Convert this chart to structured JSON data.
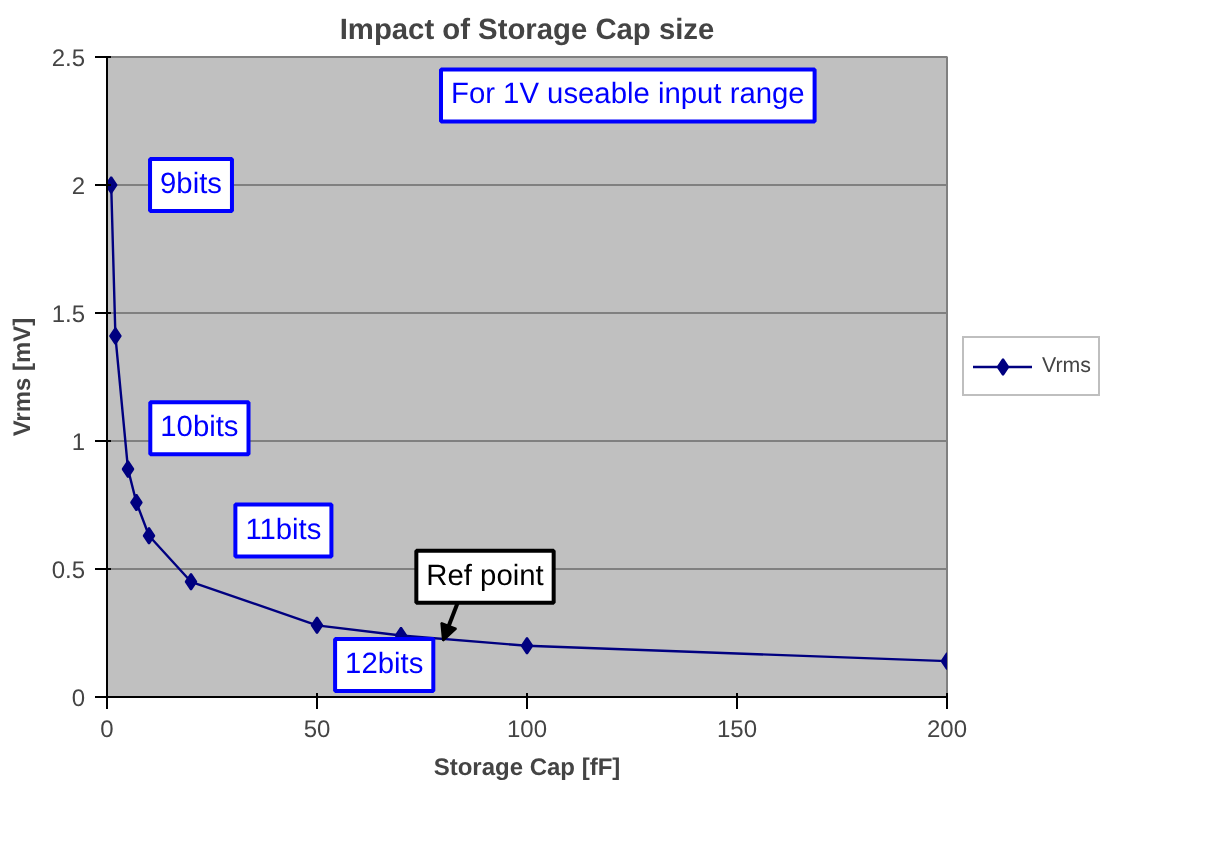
{
  "chart_data": {
    "type": "line",
    "title": "Impact of Storage Cap size",
    "xlabel": "Storage Cap [fF]",
    "ylabel": "Vrms [mV]",
    "x": [
      1,
      2,
      5,
      7,
      10,
      20,
      50,
      70,
      100,
      200
    ],
    "series": [
      {
        "name": "Vrms",
        "color": "#000080",
        "values": [
          2.0,
          1.41,
          0.89,
          0.76,
          0.63,
          0.45,
          0.28,
          0.24,
          0.2,
          0.14
        ]
      }
    ],
    "xlim": [
      0,
      200
    ],
    "xticks": [
      0,
      50,
      100,
      150,
      200
    ],
    "ylim": [
      0,
      2.5
    ],
    "yticks": [
      0,
      0.5,
      1,
      1.5,
      2,
      2.5
    ],
    "grid": "y",
    "legend": "right",
    "marker": "diamond",
    "line_style": "solid",
    "annotations": [
      "For 1V useable input range",
      "9bits",
      "10bits",
      "11bits",
      "12bits",
      {
        "text": "Ref point",
        "x": 80,
        "y": 0.22
      }
    ]
  }
}
